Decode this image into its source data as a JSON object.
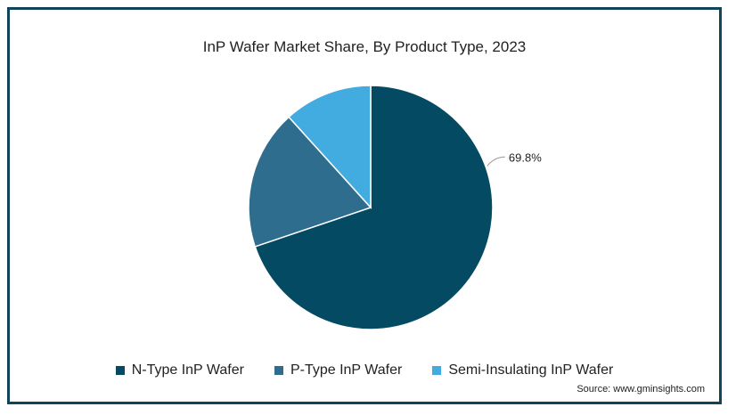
{
  "chart_data": {
    "type": "pie",
    "title": "InP Wafer Market Share, By Product Type, 2023",
    "categories": [
      "N-Type InP Wafer",
      "P-Type InP Wafer",
      "Semi-Insulating InP Wafer"
    ],
    "values": [
      69.8,
      18.5,
      11.7
    ],
    "data_labels": [
      "69.8%",
      "",
      ""
    ],
    "colors": [
      "#044a62",
      "#2f6d8f",
      "#42abe0"
    ],
    "legend_position": "bottom"
  },
  "source": "Source: www.gminsights.com"
}
